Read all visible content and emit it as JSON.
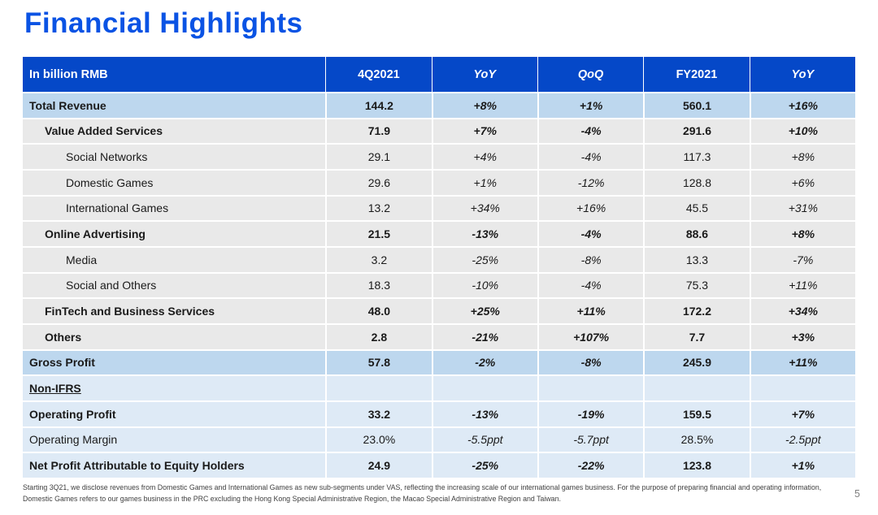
{
  "page": {
    "title": "Financial Highlights",
    "footnote": "Starting 3Q21, we disclose revenues from Domestic Games and International Games as new sub-segments under VAS, reflecting the increasing scale of our international games business. For the purpose of preparing financial and operating information, Domestic Games refers to our games business in the PRC excluding the Hong Kong Special Administrative Region, the Macao Special Administrative Region and Taiwan.",
    "page_number": "5"
  },
  "colors": {
    "title-color": "#0A53E4",
    "header-bg": "#0548C8",
    "header-text": "#FFFFFF",
    "row-blue": "#BDD7EE",
    "row-gray": "#E9E9E9",
    "row-pale": "#DEEAF6",
    "text": "#1A1A1A",
    "footnote-color": "#404040",
    "page-color": "#808080"
  },
  "table": {
    "unit_label": "In billion RMB",
    "columns": [
      {
        "label": "In billion RMB",
        "italic": false
      },
      {
        "label": "4Q2021",
        "italic": false
      },
      {
        "label": "YoY",
        "italic": true
      },
      {
        "label": "QoQ",
        "italic": true
      },
      {
        "label": "FY2021",
        "italic": false
      },
      {
        "label": "YoY",
        "italic": true
      }
    ],
    "value_italic_cols": [
      1,
      2,
      4
    ],
    "rows": [
      {
        "label": "Total Revenue",
        "indent": 0,
        "bold": true,
        "underline": false,
        "bg": "blue",
        "values": [
          "144.2",
          "+8%",
          "+1%",
          "560.1",
          "+16%"
        ]
      },
      {
        "label": "Value Added Services",
        "indent": 1,
        "bold": true,
        "underline": false,
        "bg": "gray",
        "values": [
          "71.9",
          "+7%",
          "-4%",
          "291.6",
          "+10%"
        ]
      },
      {
        "label": "Social Networks",
        "indent": 2,
        "bold": false,
        "underline": false,
        "bg": "gray",
        "values": [
          "29.1",
          "+4%",
          "-4%",
          "117.3",
          "+8%"
        ]
      },
      {
        "label": "Domestic Games",
        "indent": 2,
        "bold": false,
        "underline": false,
        "bg": "gray",
        "values": [
          "29.6",
          "+1%",
          "-12%",
          "128.8",
          "+6%"
        ]
      },
      {
        "label": "International Games",
        "indent": 2,
        "bold": false,
        "underline": false,
        "bg": "gray",
        "values": [
          "13.2",
          "+34%",
          "+16%",
          "45.5",
          "+31%"
        ]
      },
      {
        "label": "Online Advertising",
        "indent": 1,
        "bold": true,
        "underline": false,
        "bg": "gray",
        "values": [
          "21.5",
          "-13%",
          "-4%",
          "88.6",
          "+8%"
        ]
      },
      {
        "label": "Media",
        "indent": 2,
        "bold": false,
        "underline": false,
        "bg": "gray",
        "values": [
          "3.2",
          "-25%",
          "-8%",
          "13.3",
          "-7%"
        ]
      },
      {
        "label": "Social and Others",
        "indent": 2,
        "bold": false,
        "underline": false,
        "bg": "gray",
        "values": [
          "18.3",
          "-10%",
          "-4%",
          "75.3",
          "+11%"
        ]
      },
      {
        "label": "FinTech and Business Services",
        "indent": 1,
        "bold": true,
        "underline": false,
        "bg": "gray",
        "values": [
          "48.0",
          "+25%",
          "+11%",
          "172.2",
          "+34%"
        ]
      },
      {
        "label": "Others",
        "indent": 1,
        "bold": true,
        "underline": false,
        "bg": "gray",
        "values": [
          "2.8",
          "-21%",
          "+107%",
          "7.7",
          "+3%"
        ]
      },
      {
        "label": "Gross Profit",
        "indent": 0,
        "bold": true,
        "underline": false,
        "bg": "blue",
        "values": [
          "57.8",
          "-2%",
          "-8%",
          "245.9",
          "+11%"
        ]
      },
      {
        "label": "Non-IFRS",
        "indent": 0,
        "bold": true,
        "underline": true,
        "bg": "pale",
        "values": [
          "",
          "",
          "",
          "",
          ""
        ]
      },
      {
        "label": "Operating Profit",
        "indent": 0,
        "bold": true,
        "underline": false,
        "bg": "pale",
        "values": [
          "33.2",
          "-13%",
          "-19%",
          "159.5",
          "+7%"
        ]
      },
      {
        "label": "Operating Margin",
        "indent": 0,
        "bold": false,
        "underline": false,
        "bg": "pale",
        "values": [
          "23.0%",
          "-5.5ppt",
          "-5.7ppt",
          "28.5%",
          "-2.5ppt"
        ]
      },
      {
        "label": "Net Profit Attributable to Equity Holders",
        "indent": 0,
        "bold": true,
        "underline": false,
        "bg": "pale",
        "values": [
          "24.9",
          "-25%",
          "-22%",
          "123.8",
          "+1%"
        ]
      }
    ]
  }
}
